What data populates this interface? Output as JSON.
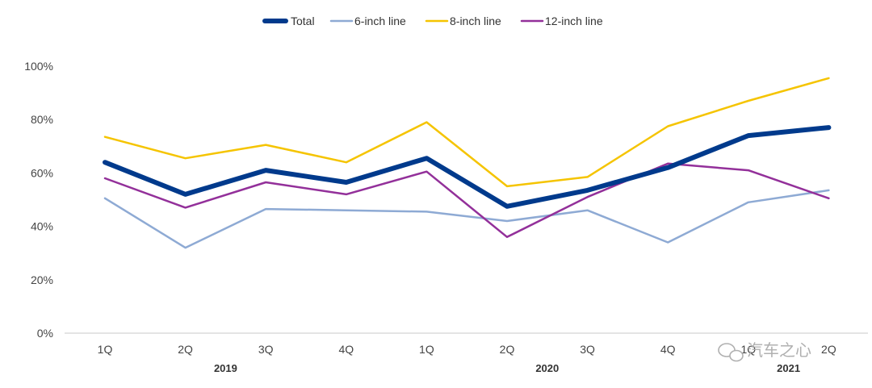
{
  "chart_data": {
    "type": "line",
    "categories": [
      "1Q",
      "2Q",
      "3Q",
      "4Q",
      "1Q",
      "2Q",
      "3Q",
      "4Q",
      "1Q",
      "2Q"
    ],
    "year_labels": [
      {
        "label": "2019",
        "center_index": 1.5
      },
      {
        "label": "2020",
        "center_index": 5.5
      },
      {
        "label": "2021",
        "center_index": 8.5
      }
    ],
    "ylim": [
      0,
      100
    ],
    "yticks": [
      0,
      20,
      40,
      60,
      80,
      100
    ],
    "ytick_labels": [
      "0%",
      "20%",
      "40%",
      "60%",
      "80%",
      "100%"
    ],
    "legend_position": "top-center",
    "series": [
      {
        "name": "Total",
        "color": "#003a8c",
        "values": [
          64,
          52,
          61,
          56.5,
          65.5,
          47.5,
          53.5,
          62,
          74,
          77
        ]
      },
      {
        "name": "6-inch line",
        "color": "#8eaad4",
        "values": [
          50.5,
          32,
          46.5,
          46,
          45.5,
          42,
          46,
          34,
          49,
          53.5
        ]
      },
      {
        "name": "8-inch line",
        "color": "#f5c400",
        "values": [
          73.5,
          65.5,
          70.5,
          64,
          79,
          55,
          58.5,
          77.5,
          87,
          95.5
        ]
      },
      {
        "name": "12-inch line",
        "color": "#93309a",
        "values": [
          58,
          47,
          56.5,
          52,
          60.5,
          36,
          51,
          63.5,
          61,
          50.5
        ]
      }
    ]
  },
  "watermark": {
    "text": "汽车之心"
  }
}
